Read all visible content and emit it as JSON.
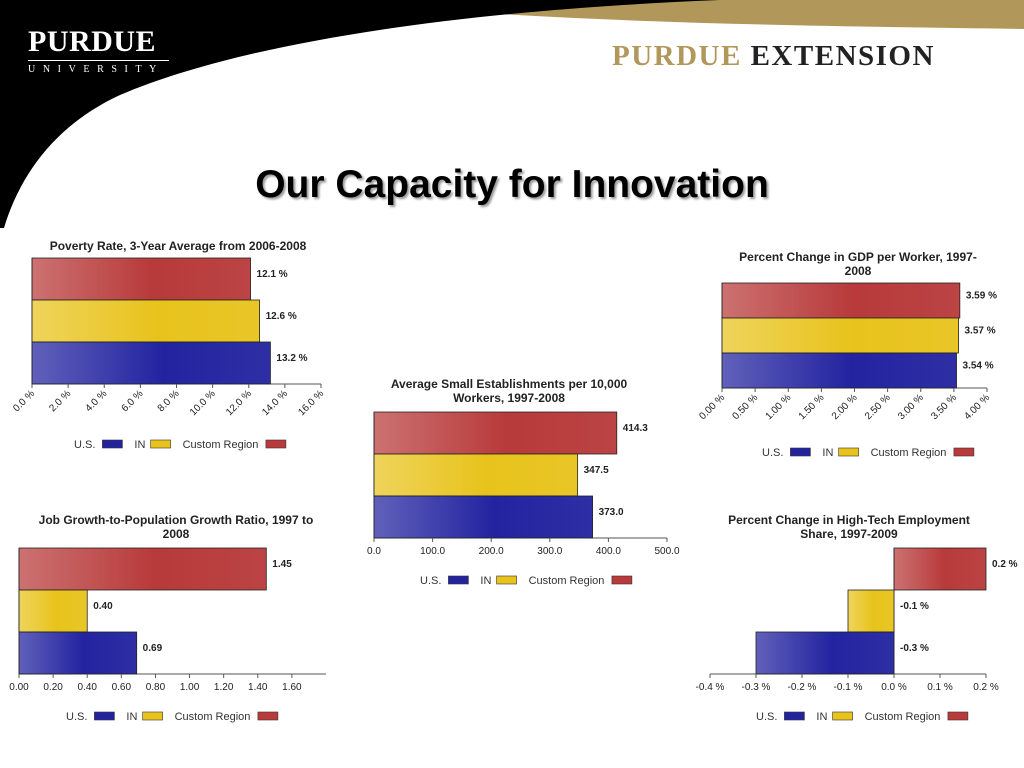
{
  "header": {
    "left_logo_name": "PURDUE",
    "left_logo_sub": "UNIVERSITY",
    "right_logo_part1": "PURDUE",
    "right_logo_part2": "EXTENSION",
    "black_color": "#000000",
    "gold_color": "#b1985a"
  },
  "slide": {
    "title": "Our Capacity for Innovation"
  },
  "series_colors": {
    "U.S.": "#2323a0",
    "IN": "#e8c31c",
    "Custom Region": "#b83a3a"
  },
  "chart_data": [
    {
      "id": "poverty",
      "type": "bar",
      "orientation": "horizontal",
      "title": [
        "Poverty Rate, 3-Year Average from 2006-2008"
      ],
      "categories": [
        "Custom Region",
        "IN",
        "U.S."
      ],
      "values": [
        12.1,
        12.6,
        13.2
      ],
      "value_labels": [
        "12.1 %",
        "12.6 %",
        "13.2 %"
      ],
      "xlim": [
        0,
        16
      ],
      "ticks": [
        0,
        2,
        4,
        6,
        8,
        10,
        12,
        14,
        16
      ],
      "tick_labels": [
        "0.0 %",
        "2.0 %",
        "4.0 %",
        "6.0 %",
        "8.0 %",
        "10.0 %",
        "12.0 %",
        "14.0 %",
        "16.0 %"
      ],
      "tick_rotation": "rotated",
      "legend": [
        "U.S.",
        "IN",
        "Custom Region"
      ],
      "legend_position": "bottom"
    },
    {
      "id": "gdp",
      "type": "bar",
      "orientation": "horizontal",
      "title": [
        "Percent Change in GDP per Worker, 1997-",
        "2008"
      ],
      "categories": [
        "Custom Region",
        "IN",
        "U.S."
      ],
      "values": [
        3.59,
        3.57,
        3.54
      ],
      "value_labels": [
        "3.59 %",
        "3.57 %",
        "3.54 %"
      ],
      "xlim": [
        0,
        4
      ],
      "ticks": [
        0,
        0.5,
        1,
        1.5,
        2,
        2.5,
        3,
        3.5,
        4
      ],
      "tick_labels": [
        "0.00 %",
        "0.50 %",
        "1.00 %",
        "1.50 %",
        "2.00 %",
        "2.50 %",
        "3.00 %",
        "3.50 %",
        "4.00 %"
      ],
      "tick_rotation": "rotated",
      "legend": [
        "U.S.",
        "IN",
        "Custom Region"
      ],
      "legend_position": "bottom"
    },
    {
      "id": "small_est",
      "type": "bar",
      "orientation": "horizontal",
      "title": [
        "Average Small Establishments per 10,000",
        "Workers, 1997-2008"
      ],
      "categories": [
        "Custom Region",
        "IN",
        "U.S."
      ],
      "values": [
        414.3,
        347.5,
        373.0
      ],
      "value_labels": [
        "414.3",
        "347.5",
        "373.0"
      ],
      "xlim": [
        0,
        500
      ],
      "ticks": [
        0,
        100,
        200,
        300,
        400,
        500
      ],
      "tick_labels": [
        "0.0",
        "100.0",
        "200.0",
        "300.0",
        "400.0",
        "500.0"
      ],
      "tick_rotation": "horizontal",
      "legend": [
        "U.S.",
        "IN",
        "Custom Region"
      ],
      "legend_position": "bottom"
    },
    {
      "id": "job_growth",
      "type": "bar",
      "orientation": "horizontal",
      "title": [
        "Job Growth-to-Population Growth Ratio, 1997 to",
        "2008"
      ],
      "categories": [
        "Custom Region",
        "IN",
        "U.S."
      ],
      "values": [
        1.45,
        0.4,
        0.69
      ],
      "value_labels": [
        "1.45",
        "0.40",
        "0.69"
      ],
      "xlim": [
        0,
        1.8
      ],
      "ticks": [
        0,
        0.2,
        0.4,
        0.6,
        0.8,
        1.0,
        1.2,
        1.4,
        1.6
      ],
      "tick_labels": [
        "0.00",
        "0.20",
        "0.40",
        "0.60",
        "0.80",
        "1.00",
        "1.20",
        "1.40",
        "1.60"
      ],
      "tick_rotation": "horizontal",
      "legend": [
        "U.S.",
        "IN",
        "Custom Region"
      ],
      "legend_position": "bottom"
    },
    {
      "id": "hightech",
      "type": "bar",
      "orientation": "horizontal",
      "title": [
        "Percent Change in High-Tech Employment",
        "Share, 1997-2009"
      ],
      "categories": [
        "Custom Region",
        "IN",
        "U.S."
      ],
      "values": [
        0.2,
        -0.1,
        -0.3
      ],
      "value_labels": [
        "0.2 %",
        "-0.1 %",
        "-0.3 %"
      ],
      "xlim": [
        -0.4,
        0.2
      ],
      "ticks": [
        -0.4,
        -0.3,
        -0.2,
        -0.1,
        0,
        0.1,
        0.2
      ],
      "tick_labels": [
        "-0.4 %",
        "-0.3 %",
        "-0.2 %",
        "-0.1 %",
        "0.0 %",
        "0.1 %",
        "0.2 %"
      ],
      "tick_rotation": "horizontal",
      "legend": [
        "U.S.",
        "IN",
        "Custom Region"
      ],
      "legend_position": "bottom"
    }
  ]
}
